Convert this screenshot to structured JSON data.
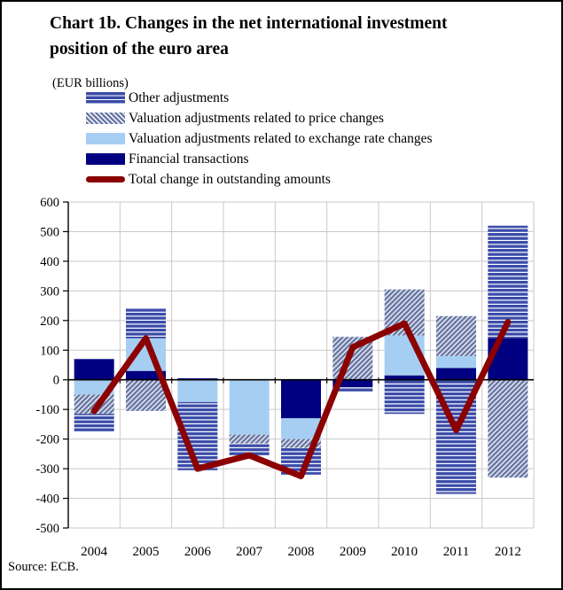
{
  "title": {
    "full": "Chart 1b. Changes in the net international investment position of the euro area",
    "line1": "Chart 1b. Changes in the net international investment",
    "line2": "position of the euro area"
  },
  "subtitle": "(EUR billions)",
  "source": "Source: ECB.",
  "legend": {
    "items": [
      {
        "label": "Other adjustments",
        "swatch": "other"
      },
      {
        "label": "Valuation adjustments related to price changes",
        "swatch": "price"
      },
      {
        "label": "Valuation adjustments related to exchange rate changes",
        "swatch": "exchange_rate"
      },
      {
        "label": "Financial transactions",
        "swatch": "financial_transactions"
      },
      {
        "label": "Total change in outstanding amounts",
        "swatch": "total_line"
      }
    ]
  },
  "colors": {
    "financial_transactions": "#000080",
    "exchange_rate": "#A6CEF2",
    "price_base": "#6B7AA6",
    "price_stripe": "#FFFFFF",
    "other_base": "#3A4BA8",
    "other_stripe": "#FFFFFF",
    "total_line": "#8B0000",
    "grid": "#C9C9C9",
    "axis": "#000000",
    "text": "#000000",
    "background": "#FFFFFF"
  },
  "chart_data": {
    "type": "bar",
    "subtype": "stacked-bars-with-total-line",
    "title": "Chart 1b. Changes in the net international investment position of the euro area",
    "units": "EUR billions",
    "xlabel": "",
    "ylabel": "",
    "categories": [
      "2004",
      "2005",
      "2006",
      "2007",
      "2008",
      "2009",
      "2010",
      "2011",
      "2012"
    ],
    "series": [
      {
        "name": "Financial transactions",
        "style": "financial_transactions",
        "values": [
          70,
          30,
          5,
          0,
          -130,
          -25,
          15,
          40,
          140
        ]
      },
      {
        "name": "Valuation adjustments related to exchange rate changes",
        "style": "exchange_rate",
        "values": [
          -50,
          110,
          -75,
          -185,
          -70,
          0,
          135,
          40,
          0
        ]
      },
      {
        "name": "Valuation adjustments related to price changes",
        "style": "price",
        "values": [
          -65,
          -105,
          0,
          -30,
          -30,
          145,
          155,
          135,
          -330
        ]
      },
      {
        "name": "Other adjustments",
        "style": "other",
        "values": [
          -60,
          100,
          -230,
          -40,
          -90,
          -15,
          -115,
          -385,
          380
        ]
      }
    ],
    "line_series": {
      "name": "Total change in outstanding amounts",
      "values": [
        -105,
        140,
        -300,
        -255,
        -325,
        110,
        190,
        -170,
        195
      ]
    },
    "ylim": [
      -500,
      600
    ],
    "ytick_step": 100,
    "yticks": [
      600,
      500,
      400,
      300,
      200,
      100,
      0,
      -100,
      -200,
      -300,
      -400,
      -500
    ],
    "grid": true,
    "legend_position": "top-left"
  }
}
